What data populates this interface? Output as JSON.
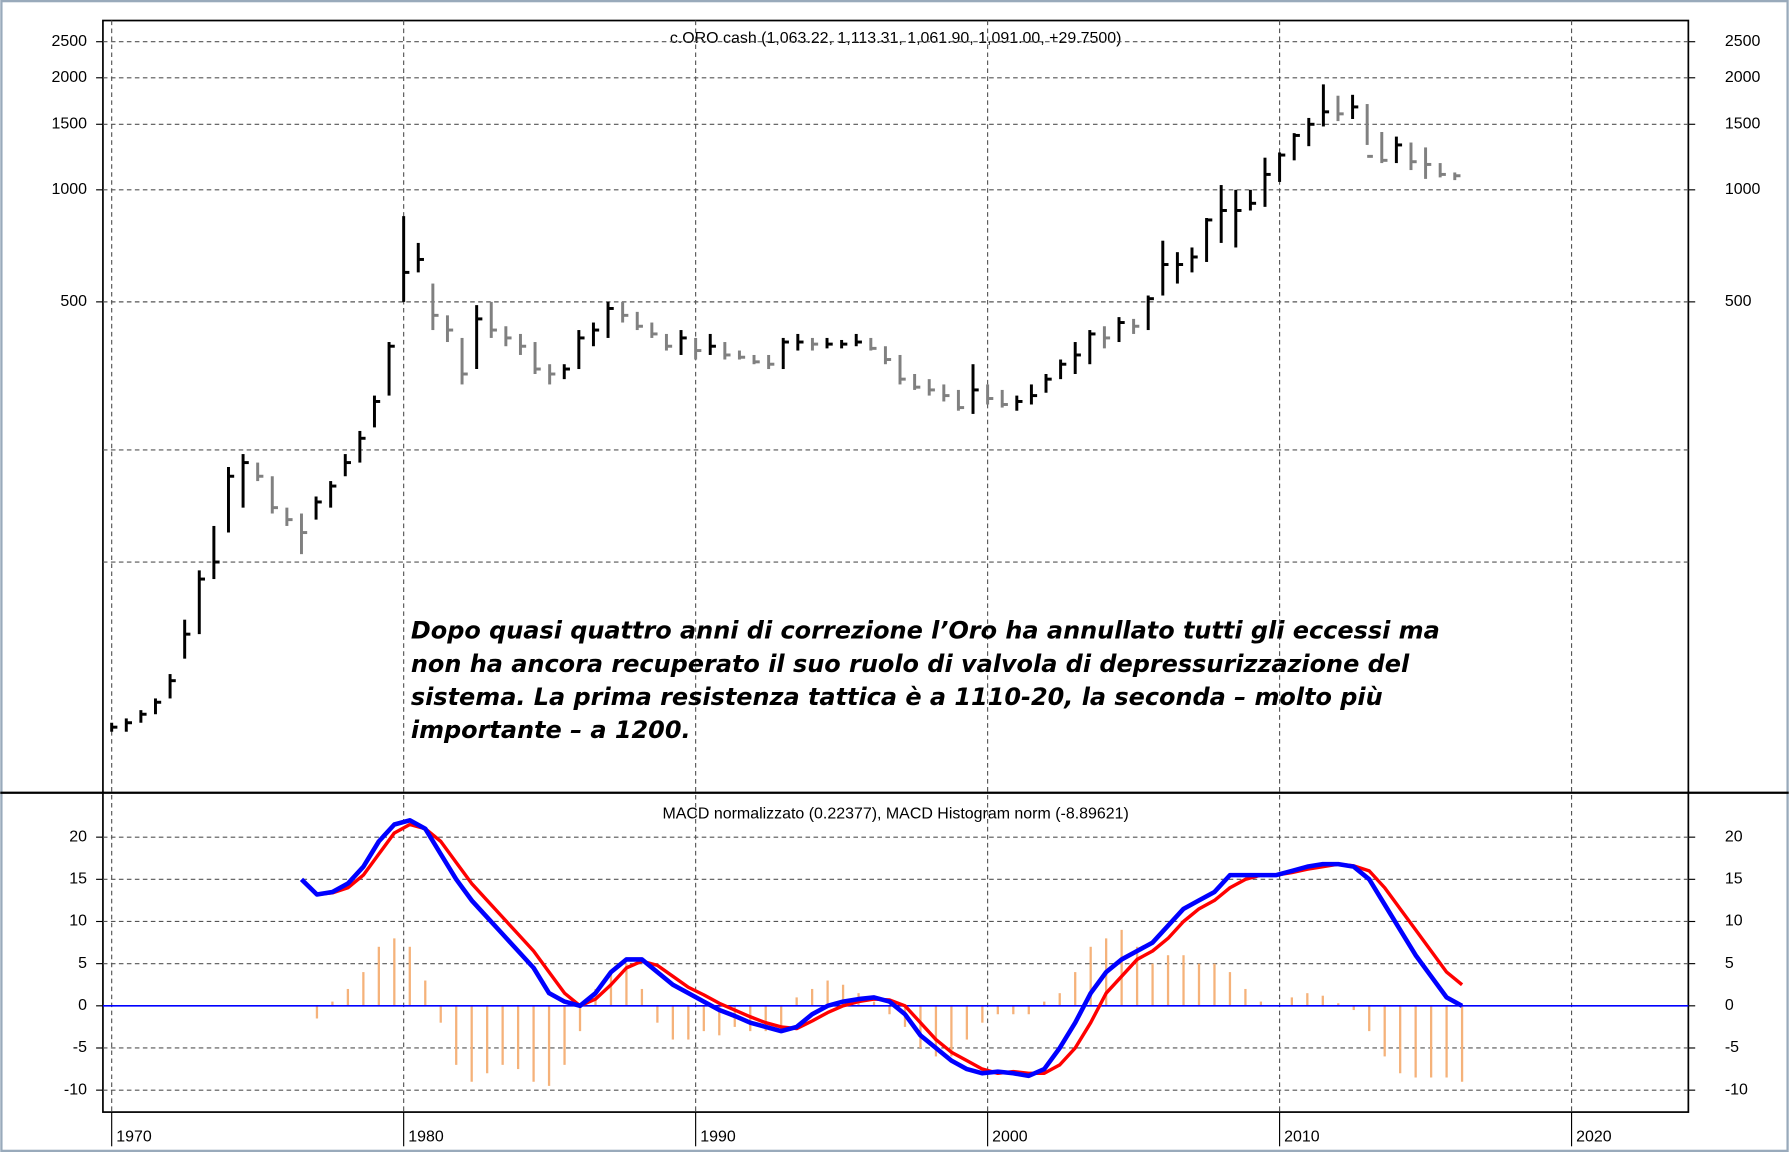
{
  "chart_data": [
    {
      "type": "ohlc",
      "title": "c.ORO cash (1,063.22, 1,113.31, 1,061.90, 1,091.00, +29.7500)",
      "log_scale": true,
      "grid": true,
      "ylim": [
        24,
        2850
      ],
      "yticks": [
        500,
        1000,
        1500,
        2000,
        2500
      ],
      "ygrid_minor": [
        100,
        200
      ],
      "up_color": "#000000",
      "down_color": "#808080",
      "x": [
        1970.0,
        1970.5,
        1971.0,
        1971.5,
        1972.0,
        1972.5,
        1973.0,
        1973.5,
        1974.0,
        1974.5,
        1975.0,
        1975.5,
        1976.0,
        1976.5,
        1977.0,
        1977.5,
        1978.0,
        1978.5,
        1979.0,
        1979.5,
        1980.0,
        1980.5,
        1981.0,
        1981.5,
        1982.0,
        1982.5,
        1983.0,
        1983.5,
        1984.0,
        1984.5,
        1985.0,
        1985.5,
        1986.0,
        1986.5,
        1987.0,
        1987.5,
        1988.0,
        1988.5,
        1989.0,
        1989.5,
        1990.0,
        1990.5,
        1991.0,
        1991.5,
        1992.0,
        1992.5,
        1993.0,
        1993.5,
        1994.0,
        1994.5,
        1995.0,
        1995.5,
        1996.0,
        1996.5,
        1997.0,
        1997.5,
        1998.0,
        1998.5,
        1999.0,
        1999.5,
        2000.0,
        2000.5,
        2001.0,
        2001.5,
        2002.0,
        2002.5,
        2003.0,
        2003.5,
        2004.0,
        2004.5,
        2005.0,
        2005.5,
        2006.0,
        2006.5,
        2007.0,
        2007.5,
        2008.0,
        2008.5,
        2009.0,
        2009.5,
        2010.0,
        2010.5,
        2011.0,
        2011.5,
        2012.0,
        2012.5,
        2013.0,
        2013.5,
        2014.0,
        2014.5,
        2015.0,
        2015.5,
        2016.0
      ],
      "low": [
        35,
        35,
        37,
        39,
        43,
        55,
        64,
        90,
        120,
        140,
        165,
        135,
        125,
        105,
        130,
        140,
        170,
        185,
        230,
        280,
        500,
        600,
        420,
        390,
        300,
        330,
        400,
        380,
        360,
        320,
        300,
        310,
        330,
        380,
        400,
        440,
        420,
        400,
        370,
        360,
        350,
        360,
        350,
        350,
        340,
        330,
        330,
        370,
        370,
        375,
        375,
        380,
        370,
        340,
        300,
        290,
        280,
        270,
        255,
        250,
        265,
        260,
        255,
        265,
        285,
        310,
        320,
        340,
        375,
        390,
        410,
        420,
        520,
        560,
        600,
        640,
        720,
        700,
        880,
        900,
        1050,
        1200,
        1310,
        1480,
        1530,
        1550,
        1320,
        1180,
        1180,
        1130,
        1070,
        1080,
        1061.9
      ],
      "high": [
        37,
        38,
        40,
        43,
        50,
        70,
        95,
        125,
        180,
        195,
        185,
        170,
        140,
        135,
        150,
        165,
        195,
        225,
        280,
        390,
        850,
        720,
        560,
        460,
        400,
        490,
        500,
        430,
        410,
        390,
        340,
        340,
        420,
        440,
        500,
        500,
        470,
        440,
        410,
        420,
        400,
        410,
        390,
        370,
        360,
        360,
        400,
        410,
        400,
        400,
        395,
        410,
        400,
        380,
        360,
        320,
        310,
        300,
        290,
        340,
        300,
        290,
        280,
        300,
        320,
        350,
        390,
        420,
        430,
        455,
        450,
        520,
        730,
        680,
        700,
        840,
        1030,
        1000,
        1000,
        1220,
        1260,
        1420,
        1560,
        1920,
        1790,
        1800,
        1700,
        1430,
        1390,
        1340,
        1300,
        1180,
        1113.31
      ],
      "close": [
        36,
        37,
        39,
        42,
        48,
        64,
        90,
        100,
        170,
        185,
        170,
        140,
        130,
        120,
        145,
        160,
        185,
        215,
        270,
        380,
        600,
        650,
        460,
        420,
        320,
        450,
        420,
        400,
        380,
        330,
        320,
        330,
        400,
        420,
        480,
        460,
        430,
        410,
        380,
        400,
        370,
        380,
        360,
        355,
        345,
        340,
        390,
        390,
        385,
        385,
        385,
        390,
        375,
        350,
        310,
        295,
        290,
        280,
        260,
        290,
        275,
        265,
        270,
        280,
        310,
        340,
        360,
        410,
        400,
        440,
        430,
        510,
        630,
        630,
        660,
        830,
        880,
        880,
        920,
        1100,
        1240,
        1400,
        1500,
        1620,
        1600,
        1670,
        1230,
        1200,
        1320,
        1190,
        1170,
        1100,
        1091
      ],
      "annotation": [
        "Dopo quasi quattro anni di correzione l’Oro ha annullato tutti gli eccessi ma",
        "non ha ancora recuperato il suo ruolo di valvola di depressurizzazione del",
        "sistema. La prima resistenza tattica è a 1110-20, la seconda – molto più",
        "importante – a 1200."
      ]
    },
    {
      "type": "macd",
      "title": "MACD normalizzato (0.22377), MACD Histogram norm (-8.89621)",
      "grid": true,
      "zero_line": true,
      "ylim": [
        -12.6,
        25
      ],
      "yticks": [
        -10,
        -5,
        0,
        5,
        10,
        15,
        20
      ],
      "xlim": [
        1969.7,
        2024.0
      ],
      "xticks": [
        1970,
        1980,
        1990,
        2000,
        2010,
        2020
      ],
      "x": [
        1976.5,
        1977.03,
        1977.56,
        1978.09,
        1978.62,
        1979.15,
        1979.68,
        1980.21,
        1980.74,
        1981.27,
        1981.8,
        1982.33,
        1982.86,
        1983.39,
        1983.92,
        1984.45,
        1984.98,
        1985.51,
        1986.04,
        1986.57,
        1987.1,
        1987.63,
        1988.16,
        1988.69,
        1989.22,
        1989.75,
        1990.28,
        1990.81,
        1991.34,
        1991.87,
        1992.4,
        1992.93,
        1993.46,
        1993.99,
        1994.52,
        1995.05,
        1995.58,
        1996.11,
        1996.64,
        1997.17,
        1997.7,
        1998.23,
        1998.76,
        1999.29,
        1999.82,
        2000.35,
        2000.88,
        2001.41,
        2001.94,
        2002.47,
        2003.0,
        2003.53,
        2004.06,
        2004.59,
        2005.12,
        2005.65,
        2006.18,
        2006.71,
        2007.24,
        2007.77,
        2008.3,
        2008.83,
        2009.36,
        2009.89,
        2010.42,
        2010.95,
        2011.48,
        2012.01,
        2012.54,
        2013.07,
        2013.6,
        2014.13,
        2014.66,
        2015.19,
        2015.72,
        2016.25
      ],
      "series": [
        {
          "name": "MACD Histogram norm",
          "kind": "histogram",
          "color": "#f5b27a",
          "values": [
            null,
            -1.5,
            0.5,
            2,
            4,
            7,
            8,
            7,
            3,
            -2,
            -7,
            -9,
            -8,
            -7,
            -7.5,
            -9,
            -9.5,
            -7,
            -3,
            2,
            4,
            5,
            2,
            -2,
            -4,
            -4,
            -3,
            -3.5,
            -2.5,
            -3,
            -3,
            -3,
            1,
            2,
            3,
            2.5,
            1.5,
            0.5,
            -1,
            -2.5,
            -5,
            -6,
            -6,
            -4,
            -2,
            -1,
            -1,
            -1,
            0.5,
            1.5,
            4,
            7,
            8,
            9,
            7,
            5,
            6,
            6,
            5,
            5,
            4,
            2,
            0.5,
            0,
            1,
            1.5,
            1.2,
            0.3,
            -0.5,
            -3,
            -6,
            -8,
            -8.5,
            -8.5,
            -8.5,
            -9
          ]
        },
        {
          "name": "Signal",
          "kind": "line",
          "color": "#ff0000",
          "values": [
            null,
            13.2,
            13.4,
            14,
            15.5,
            18,
            20.5,
            21.5,
            21,
            19.5,
            17,
            14.5,
            12.5,
            10.5,
            8.5,
            6.5,
            4,
            1.5,
            0,
            0.8,
            2.5,
            4.5,
            5.3,
            4.8,
            3.5,
            2.2,
            1.3,
            0.3,
            -0.5,
            -1.3,
            -2,
            -2.5,
            -2.7,
            -1.8,
            -0.8,
            0,
            0.5,
            0.8,
            0.7,
            0,
            -2,
            -4,
            -5.5,
            -6.5,
            -7.5,
            -8,
            -7.8,
            -8,
            -8,
            -7,
            -5,
            -2,
            1.5,
            3.5,
            5.5,
            6.5,
            8,
            10,
            11.5,
            12.5,
            14,
            15,
            15.5,
            15.5,
            15.8,
            16.2,
            16.5,
            16.8,
            16.6,
            16,
            14,
            11.5,
            9,
            6.5,
            4,
            2.5
          ]
        },
        {
          "name": "MACD normalizzato",
          "kind": "line",
          "color": "#0000ff",
          "values": [
            15,
            13.2,
            13.5,
            14.5,
            16.5,
            19.5,
            21.5,
            22,
            21,
            18,
            15,
            12.5,
            10.5,
            8.5,
            6.5,
            4.5,
            1.5,
            0.5,
            0,
            1.5,
            4,
            5.5,
            5.5,
            4,
            2.5,
            1.5,
            0.5,
            -0.5,
            -1.2,
            -2,
            -2.5,
            -3,
            -2.5,
            -1,
            0,
            0.5,
            0.8,
            1,
            0.5,
            -1,
            -3.5,
            -5,
            -6.5,
            -7.5,
            -8,
            -7.8,
            -8,
            -8.3,
            -7.5,
            -5,
            -2,
            1.5,
            4,
            5.5,
            6.5,
            7.5,
            9.5,
            11.5,
            12.5,
            13.5,
            15.5,
            15.5,
            15.5,
            15.5,
            16,
            16.5,
            16.8,
            16.8,
            16.5,
            15,
            12,
            9,
            6,
            3.5,
            1,
            0
          ]
        }
      ]
    }
  ]
}
